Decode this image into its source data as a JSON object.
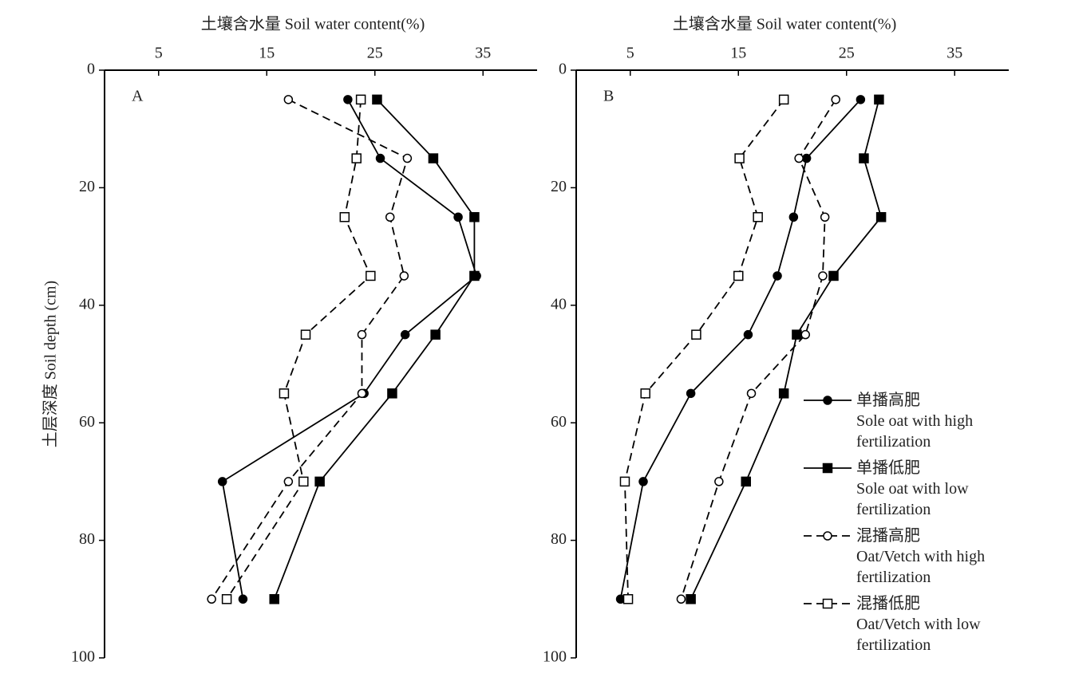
{
  "chart_data": [
    {
      "type": "line",
      "panel_label": "A",
      "x_label": "土壤含水量 Soil water content(%)",
      "y_label": "土层深度 Soil depth (cm)",
      "xlim": [
        0,
        40
      ],
      "xticks": [
        5,
        15,
        25,
        35
      ],
      "ylim": [
        0,
        100
      ],
      "yticks": [
        0,
        20,
        40,
        60,
        80,
        100
      ],
      "y_inverted": true,
      "y": [
        5,
        15,
        25,
        35,
        45,
        55,
        70,
        90
      ],
      "series": [
        {
          "color": "#000000",
          "marker": "circle",
          "filled": true,
          "dashed": false,
          "values": [
            22.5,
            25.5,
            32.7,
            34.4,
            27.8,
            24.0,
            10.9,
            12.8
          ]
        },
        {
          "color": "#000000",
          "marker": "square",
          "filled": true,
          "dashed": false,
          "values": [
            25.2,
            30.4,
            34.2,
            34.2,
            30.6,
            26.6,
            19.9,
            15.7
          ]
        },
        {
          "color": "#000000",
          "marker": "circle",
          "filled": false,
          "dashed": true,
          "values": [
            17.0,
            28.0,
            26.4,
            27.7,
            23.8,
            23.8,
            17.0,
            9.9
          ]
        },
        {
          "color": "#000000",
          "marker": "square",
          "filled": false,
          "dashed": true,
          "values": [
            23.7,
            23.3,
            22.2,
            24.6,
            18.6,
            16.6,
            18.4,
            11.3
          ]
        }
      ]
    },
    {
      "type": "line",
      "panel_label": "B",
      "x_label": "土壤含水量 Soil water content(%)",
      "xlim": [
        0,
        40
      ],
      "xticks": [
        5,
        15,
        25,
        35
      ],
      "ylim": [
        0,
        100
      ],
      "yticks": [
        0,
        20,
        40,
        60,
        80,
        100
      ],
      "y_inverted": true,
      "legend": "lower right",
      "y": [
        5,
        15,
        25,
        35,
        45,
        55,
        70,
        90
      ],
      "series": [
        {
          "name": "单播高肥",
          "name_en": "Sole oat with high fertilization",
          "color": "#000000",
          "marker": "circle",
          "filled": true,
          "dashed": false,
          "values": [
            26.3,
            21.3,
            20.1,
            18.6,
            15.9,
            10.6,
            6.2,
            4.1
          ]
        },
        {
          "name": "单播低肥",
          "name_en": "Sole oat with low fertilization",
          "color": "#000000",
          "marker": "square",
          "filled": true,
          "dashed": false,
          "values": [
            28.0,
            26.6,
            28.2,
            23.8,
            20.4,
            19.2,
            15.7,
            10.6
          ]
        },
        {
          "name": "混播高肥",
          "name_en": "Oat/Vetch with high fertilization",
          "color": "#000000",
          "marker": "circle",
          "filled": false,
          "dashed": true,
          "values": [
            24.0,
            20.6,
            23.0,
            22.8,
            21.2,
            16.2,
            13.2,
            9.7
          ]
        },
        {
          "name": "混播低肥",
          "name_en": "Oat/Vetch with low fertilization",
          "color": "#000000",
          "marker": "square",
          "filled": false,
          "dashed": true,
          "values": [
            19.2,
            15.1,
            16.8,
            15.0,
            11.1,
            6.4,
            4.5,
            4.8
          ]
        }
      ]
    }
  ]
}
